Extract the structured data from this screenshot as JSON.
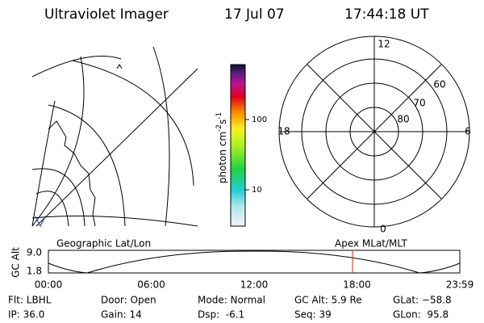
{
  "header": {
    "title": "Ultraviolet Imager",
    "date": "17 Jul 07",
    "time": "17:44:18 UT"
  },
  "colorbar": {
    "unit": {
      "base": "photon cm",
      "exp1": "-2",
      "mid": "s",
      "exp2": "-1"
    },
    "ticks": [
      "100",
      "10"
    ]
  },
  "polar": {
    "mlt_labels": [
      "12",
      "18",
      "6",
      "0"
    ],
    "lat_labels": [
      "60",
      "70",
      "80"
    ]
  },
  "strip": {
    "left_label": "Geographic Lat/Lon",
    "right_label": "Apex MLat/MLT",
    "y_label": "GC Alt",
    "y_ticks": [
      "9.0",
      "1.8"
    ],
    "x_ticks": [
      "00:00",
      "06:00",
      "12:00",
      "18:00",
      "23:59"
    ]
  },
  "status": {
    "rows": [
      [
        "Flt: LBHL",
        "Door: Open",
        "Mode: Normal",
        "GC Alt: 5.9 Re",
        "GLat: −58.8"
      ],
      [
        "IP: 36.0",
        "Gain: 14",
        "Dsp:  -6.1",
        "Seq: 39",
        "GLon:  95.8"
      ]
    ]
  }
}
